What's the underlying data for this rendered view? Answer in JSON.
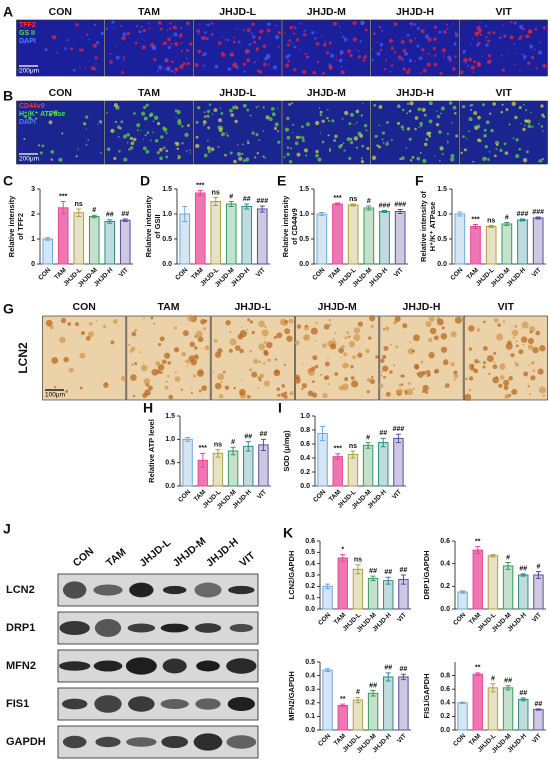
{
  "figure": {
    "image_panels": [
      {
        "panel": "A",
        "columns": [
          "CON",
          "TAM",
          "JHJD-L",
          "JHJD-M",
          "JHJD-H",
          "VIT"
        ],
        "stains": [
          "TFF2",
          "GS II",
          "DAPI"
        ],
        "scale": "200μm"
      },
      {
        "panel": "B",
        "columns": [
          "CON",
          "TAM",
          "JHJD-L",
          "JHJD-M",
          "JHJD-H",
          "VIT"
        ],
        "stains": [
          "CD44v9",
          "H⁺/K⁺ ATPase",
          "DAPI"
        ],
        "scale": "200μm"
      },
      {
        "panel": "G",
        "columns": [
          "CON",
          "TAM",
          "JHJD-L",
          "JHJD-M",
          "JHJD-H",
          "VIT"
        ],
        "row_label": "LCN2",
        "scale": "100μm"
      }
    ],
    "blot": {
      "panel": "J",
      "lanes": [
        "CON",
        "TAM",
        "JHJD-L",
        "JHJD-M",
        "JHJD-H",
        "VIT"
      ],
      "proteins": [
        "LCN2",
        "DRP1",
        "MFN2",
        "FIS1",
        "GAPDH"
      ]
    }
  },
  "chart_data": [
    {
      "type": "bar",
      "panel": "C",
      "ylabel": [
        "Relative intensity",
        "of TFF2"
      ],
      "categories": [
        "CON",
        "TAM",
        "JHJD-L",
        "JHJD-M",
        "JHJD-H",
        "VIT"
      ],
      "values": [
        1.0,
        2.25,
        2.05,
        1.9,
        1.7,
        1.75
      ],
      "errors": [
        0.05,
        0.25,
        0.15,
        0.05,
        0.07,
        0.05
      ],
      "annotations": [
        null,
        "***",
        "ns",
        "#",
        "##",
        "##"
      ],
      "colors": [
        "#6fa8dc",
        "#e8489a",
        "#b0a040",
        "#3a9a5a",
        "#2e8b8b",
        "#5b4ba0"
      ],
      "ylim": [
        0,
        3
      ],
      "yticks": [
        0,
        1,
        2,
        3
      ]
    },
    {
      "type": "bar",
      "panel": "D",
      "ylabel": [
        "Relative intensity",
        "of GSII"
      ],
      "categories": [
        "CON",
        "TAM",
        "JHJD-L",
        "JHJD-M",
        "JHJD-H",
        "VIT"
      ],
      "values": [
        1.0,
        1.42,
        1.25,
        1.2,
        1.15,
        1.1
      ],
      "errors": [
        0.15,
        0.05,
        0.08,
        0.05,
        0.05,
        0.06
      ],
      "annotations": [
        null,
        "***",
        "ns",
        "#",
        "##",
        "###"
      ],
      "colors": [
        "#6fa8dc",
        "#e8489a",
        "#b0a040",
        "#3a9a5a",
        "#2e8b8b",
        "#5b4ba0"
      ],
      "ylim": [
        0,
        1.5
      ],
      "yticks": [
        {
          "value": 0,
          "label": "0.0"
        },
        0.5,
        {
          "value": 1,
          "label": "1.0"
        },
        1.5
      ]
    },
    {
      "type": "bar",
      "panel": "E",
      "ylabel": [
        "Relative intensity",
        "of CD44v9"
      ],
      "categories": [
        "CON",
        "TAM",
        "JHJD-L",
        "JHJD-M",
        "JHJD-H",
        "VIT"
      ],
      "values": [
        1.0,
        1.2,
        1.18,
        1.12,
        1.05,
        1.05
      ],
      "errors": [
        0.03,
        0.02,
        0.02,
        0.04,
        0.02,
        0.04
      ],
      "annotations": [
        null,
        "***",
        "ns",
        "#",
        "###",
        "###"
      ],
      "colors": [
        "#6fa8dc",
        "#e8489a",
        "#b0a040",
        "#3a9a5a",
        "#2e8b8b",
        "#5b4ba0"
      ],
      "ylim": [
        0,
        1.5
      ],
      "yticks": [
        {
          "value": 0,
          "label": "0.0"
        },
        0.5,
        {
          "value": 1,
          "label": "1.0"
        },
        1.5
      ]
    },
    {
      "type": "bar",
      "panel": "F",
      "ylabel": [
        "Relative intensity of",
        "H⁺/K⁺ ATPase"
      ],
      "categories": [
        "CON",
        "TAM",
        "JHJD-L",
        "JHJD-M",
        "JHJD-H",
        "VIT"
      ],
      "values": [
        1.0,
        0.75,
        0.75,
        0.8,
        0.88,
        0.92
      ],
      "errors": [
        0.04,
        0.04,
        0.02,
        0.03,
        0.02,
        0.02
      ],
      "annotations": [
        null,
        "***",
        "ns",
        "#",
        "###",
        "###"
      ],
      "colors": [
        "#6fa8dc",
        "#e8489a",
        "#b0a040",
        "#3a9a5a",
        "#2e8b8b",
        "#5b4ba0"
      ],
      "ylim": [
        0,
        1.5
      ],
      "yticks": [
        {
          "value": 0,
          "label": "0.0"
        },
        0.5,
        {
          "value": 1,
          "label": "1.0"
        },
        1.5
      ]
    },
    {
      "type": "bar",
      "panel": "H",
      "ylabel": [
        "Relative ATP level"
      ],
      "categories": [
        "CON",
        "TAM",
        "JHJD-L",
        "JHJD-M",
        "JHJD-H",
        "VIT"
      ],
      "values": [
        1.0,
        0.55,
        0.7,
        0.75,
        0.85,
        0.88
      ],
      "errors": [
        0.04,
        0.15,
        0.08,
        0.08,
        0.1,
        0.12
      ],
      "annotations": [
        null,
        "***",
        "ns",
        "#",
        "##",
        "##"
      ],
      "colors": [
        "#6fa8dc",
        "#e8489a",
        "#b0a040",
        "#3a9a5a",
        "#2e8b8b",
        "#5b4ba0"
      ],
      "ylim": [
        0,
        1.5
      ],
      "yticks": [
        {
          "value": 0,
          "label": "0.0"
        },
        0.5,
        {
          "value": 1,
          "label": "1.0"
        },
        1.5
      ]
    },
    {
      "type": "bar",
      "panel": "I",
      "ylabel": [
        "SOD (μ/mg)"
      ],
      "categories": [
        "CON",
        "TAM",
        "JHJD-L",
        "JHJD-M",
        "JHJD-H",
        "VIT"
      ],
      "values": [
        0.75,
        0.42,
        0.45,
        0.58,
        0.62,
        0.68
      ],
      "errors": [
        0.1,
        0.04,
        0.05,
        0.04,
        0.06,
        0.06
      ],
      "annotations": [
        null,
        "***",
        "ns",
        "#",
        "##",
        "###"
      ],
      "colors": [
        "#6fa8dc",
        "#e8489a",
        "#b0a040",
        "#3a9a5a",
        "#2e8b8b",
        "#5b4ba0"
      ],
      "ylim": [
        0,
        1
      ],
      "yticks": [
        {
          "value": 0,
          "label": "0.0"
        },
        0.2,
        0.4,
        0.6,
        0.8,
        {
          "value": 1,
          "label": "1.0"
        }
      ]
    },
    {
      "type": "bar",
      "panel": "K",
      "ylabel": [
        "LCN2/GAPDH"
      ],
      "categories": [
        "CON",
        "TAM",
        "JHJD-L",
        "JHJD-M",
        "JHJD-H",
        "VIT"
      ],
      "values": [
        0.2,
        0.45,
        0.35,
        0.27,
        0.25,
        0.26
      ],
      "errors": [
        0.02,
        0.03,
        0.04,
        0.02,
        0.03,
        0.04
      ],
      "annotations": [
        null,
        "*",
        "ns",
        "##",
        "##",
        "##"
      ],
      "colors": [
        "#6fa8dc",
        "#e8489a",
        "#b0a040",
        "#3a9a5a",
        "#2e8b8b",
        "#5b4ba0"
      ],
      "ylim": [
        0,
        0.6
      ],
      "yticks": [
        {
          "value": 0,
          "label": "0.0"
        },
        0.1,
        0.2,
        0.3,
        0.4,
        0.5,
        0.6
      ]
    },
    {
      "type": "bar",
      "ylabel": [
        "DRP1/GAPDH"
      ],
      "categories": [
        "CON",
        "TAM",
        "JHJD-L",
        "JHJD-M",
        "JHJD-H",
        "VIT"
      ],
      "values": [
        0.15,
        0.52,
        0.47,
        0.38,
        0.3,
        0.3
      ],
      "errors": [
        0.01,
        0.03,
        0.01,
        0.03,
        0.01,
        0.03
      ],
      "annotations": [
        null,
        "**",
        null,
        "#",
        "##",
        "#"
      ],
      "colors": [
        "#6fa8dc",
        "#e8489a",
        "#b0a040",
        "#3a9a5a",
        "#2e8b8b",
        "#5b4ba0"
      ],
      "ylim": [
        0,
        0.6
      ],
      "yticks": [
        {
          "value": 0,
          "label": "0.0"
        },
        0.2,
        0.4,
        0.6
      ]
    },
    {
      "type": "bar",
      "ylabel": [
        "MFN2/GAPDH"
      ],
      "categories": [
        "CON",
        "TAM",
        "JHJD-L",
        "JHJD-M",
        "JHJD-H",
        "VIT"
      ],
      "values": [
        0.44,
        0.18,
        0.22,
        0.27,
        0.39,
        0.39
      ],
      "errors": [
        0.01,
        0.01,
        0.02,
        0.02,
        0.03,
        0.02
      ],
      "annotations": [
        null,
        "**",
        "#",
        "##",
        "##",
        "##"
      ],
      "colors": [
        "#6fa8dc",
        "#e8489a",
        "#b0a040",
        "#3a9a5a",
        "#2e8b8b",
        "#5b4ba0"
      ],
      "ylim": [
        0,
        0.5
      ],
      "yticks": [
        {
          "value": 0,
          "label": "0.0"
        },
        0.1,
        0.2,
        0.3,
        0.4,
        0.5
      ]
    },
    {
      "type": "bar",
      "ylabel": [
        "FIS1/GAPDH"
      ],
      "categories": [
        "CON",
        "TAM",
        "JHJD-L",
        "JHJD-M",
        "JHJD-H",
        "VIT"
      ],
      "values": [
        0.4,
        0.82,
        0.62,
        0.62,
        0.45,
        0.3
      ],
      "errors": [
        0.01,
        0.02,
        0.06,
        0.03,
        0.02,
        0.01
      ],
      "annotations": [
        null,
        "**",
        "#",
        "##",
        "##",
        "##"
      ],
      "colors": [
        "#6fa8dc",
        "#e8489a",
        "#b0a040",
        "#3a9a5a",
        "#2e8b8b",
        "#5b4ba0"
      ],
      "ylim": [
        0,
        1
      ],
      "yticks": [
        {
          "value": 0,
          "label": "0.0"
        },
        0.2,
        0.4,
        0.6,
        0.8
      ]
    }
  ]
}
